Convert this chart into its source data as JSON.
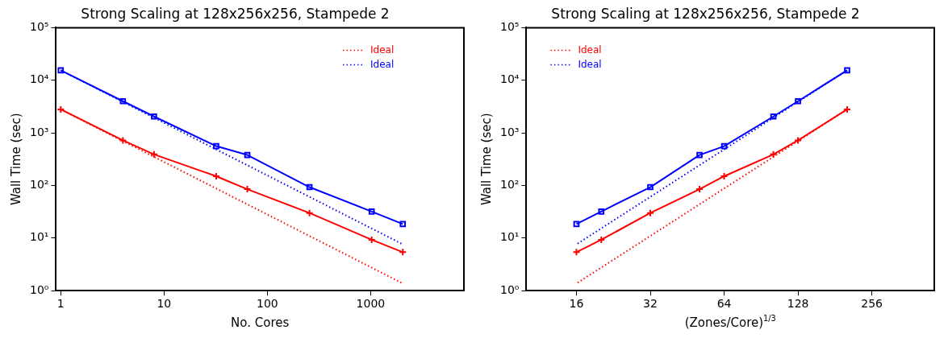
{
  "chart_data": [
    {
      "type": "line",
      "title": "Strong Scaling at 128x256x256, Stampede 2",
      "xlabel": "No. Cores",
      "ylabel": "Wall Time (sec)",
      "log": "xy",
      "grid": false,
      "legend": "top right",
      "xlim": [
        0.9,
        8000
      ],
      "xticks": [
        1,
        10,
        100,
        1000
      ],
      "ylim": [
        1,
        100000
      ],
      "yticks": [
        {
          "value": 1,
          "label": "10⁰"
        },
        {
          "value": 10,
          "label": "10¹"
        },
        {
          "value": 100,
          "label": "10²"
        },
        {
          "value": 1000,
          "label": "10³"
        },
        {
          "value": 10000,
          "label": "10⁴"
        },
        {
          "value": 100000,
          "label": "10⁵"
        }
      ],
      "series": [
        {
          "color": "#ff0000",
          "marker": "cross",
          "line_style": "solid",
          "x": [
            1,
            4,
            8,
            32,
            64,
            256,
            1024,
            2048
          ],
          "values": [
            2800,
            720,
            390,
            150,
            85,
            30,
            9.3,
            5.4
          ]
        },
        {
          "name": "Ideal",
          "color": "#ff0000",
          "marker": "none",
          "line_style": "dotted",
          "x": [
            1,
            2048
          ],
          "values": [
            2800,
            1.37
          ]
        },
        {
          "color": "#0000ff",
          "marker": "square",
          "line_style": "solid",
          "x": [
            1,
            4,
            8,
            32,
            64,
            256,
            1024,
            2048
          ],
          "values": [
            15500,
            4000,
            2050,
            560,
            380,
            93,
            32,
            18.5
          ]
        },
        {
          "name": "Ideal",
          "color": "#0000ff",
          "marker": "none",
          "line_style": "dotted",
          "x": [
            1,
            2048
          ],
          "values": [
            15500,
            7.6
          ]
        }
      ]
    },
    {
      "type": "line",
      "title": "Strong Scaling at 128x256x256, Stampede 2",
      "xlabel": "(Zones/Core)$^{1/3}$",
      "ylabel": "Wall Time (sec)",
      "log": "xy",
      "grid": false,
      "legend": "top left",
      "xlim": [
        10,
        460
      ],
      "xticks": [
        16,
        32,
        64,
        128,
        256
      ],
      "ylim": [
        1,
        100000
      ],
      "yticks": [
        {
          "value": 1,
          "label": "10⁰"
        },
        {
          "value": 10,
          "label": "10¹"
        },
        {
          "value": 100,
          "label": "10²"
        },
        {
          "value": 1000,
          "label": "10³"
        },
        {
          "value": 10000,
          "label": "10⁴"
        },
        {
          "value": 100000,
          "label": "10⁵"
        }
      ],
      "series": [
        {
          "color": "#ff0000",
          "marker": "cross",
          "line_style": "solid",
          "x": [
            203,
            128,
            101.6,
            64,
            50.8,
            32,
            20.2,
            16
          ],
          "values": [
            2800,
            720,
            390,
            150,
            85,
            30,
            9.3,
            5.4
          ]
        },
        {
          "name": "Ideal",
          "color": "#ff0000",
          "marker": "none",
          "line_style": "dotted",
          "x": [
            203,
            16
          ],
          "values": [
            2800,
            1.37
          ]
        },
        {
          "color": "#0000ff",
          "marker": "square",
          "line_style": "solid",
          "x": [
            203,
            128,
            101.6,
            64,
            50.8,
            32,
            20.2,
            16
          ],
          "values": [
            15500,
            4000,
            2050,
            560,
            380,
            93,
            32,
            18.5
          ]
        },
        {
          "name": "Ideal",
          "color": "#0000ff",
          "marker": "none",
          "line_style": "dotted",
          "x": [
            203,
            16
          ],
          "values": [
            15500,
            7.6
          ]
        }
      ]
    }
  ]
}
